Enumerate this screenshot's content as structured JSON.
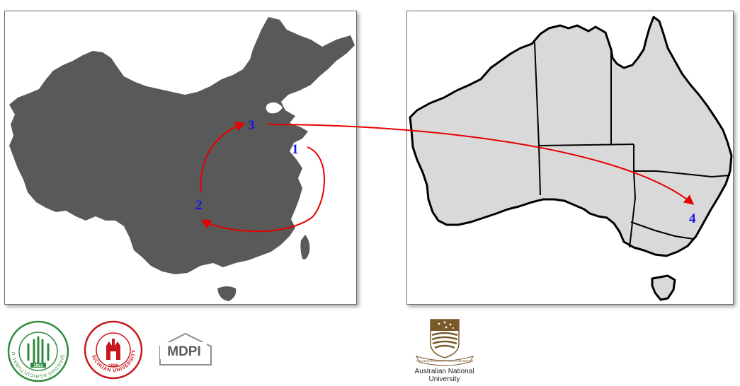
{
  "route_points": [
    {
      "id": "p1",
      "label": "1"
    },
    {
      "id": "p2",
      "label": "2"
    },
    {
      "id": "p3",
      "label": "3"
    },
    {
      "id": "p4",
      "label": "4"
    }
  ],
  "colors": {
    "china_fill": "#595959",
    "australia_fill": "#d9d9d9",
    "route_arrow": "#e60000",
    "point_label": "#1515e6",
    "qau_green": "#2f8a3e",
    "scu_red": "#c8161d",
    "mdpi_gray": "#5a5a5a",
    "anu_brown": "#7a5a2a"
  },
  "logos": {
    "qau": {
      "icon": "qingdao-agricultural-university-seal",
      "ring_text": "QINGDAO AGRICULTURAL UNIVERSITY",
      "year": "1951"
    },
    "scu": {
      "icon": "sichuan-university-seal",
      "ring_text": "SICHUAN UNIVERSITY",
      "year": "1896"
    },
    "mdpi": {
      "text": "MDPI"
    },
    "anu": {
      "icon": "anu-crest",
      "motto": "NATURAM PRIMUM COGNOSCERE RERUM",
      "name_line1": "Australian National",
      "name_line2": "University"
    }
  }
}
